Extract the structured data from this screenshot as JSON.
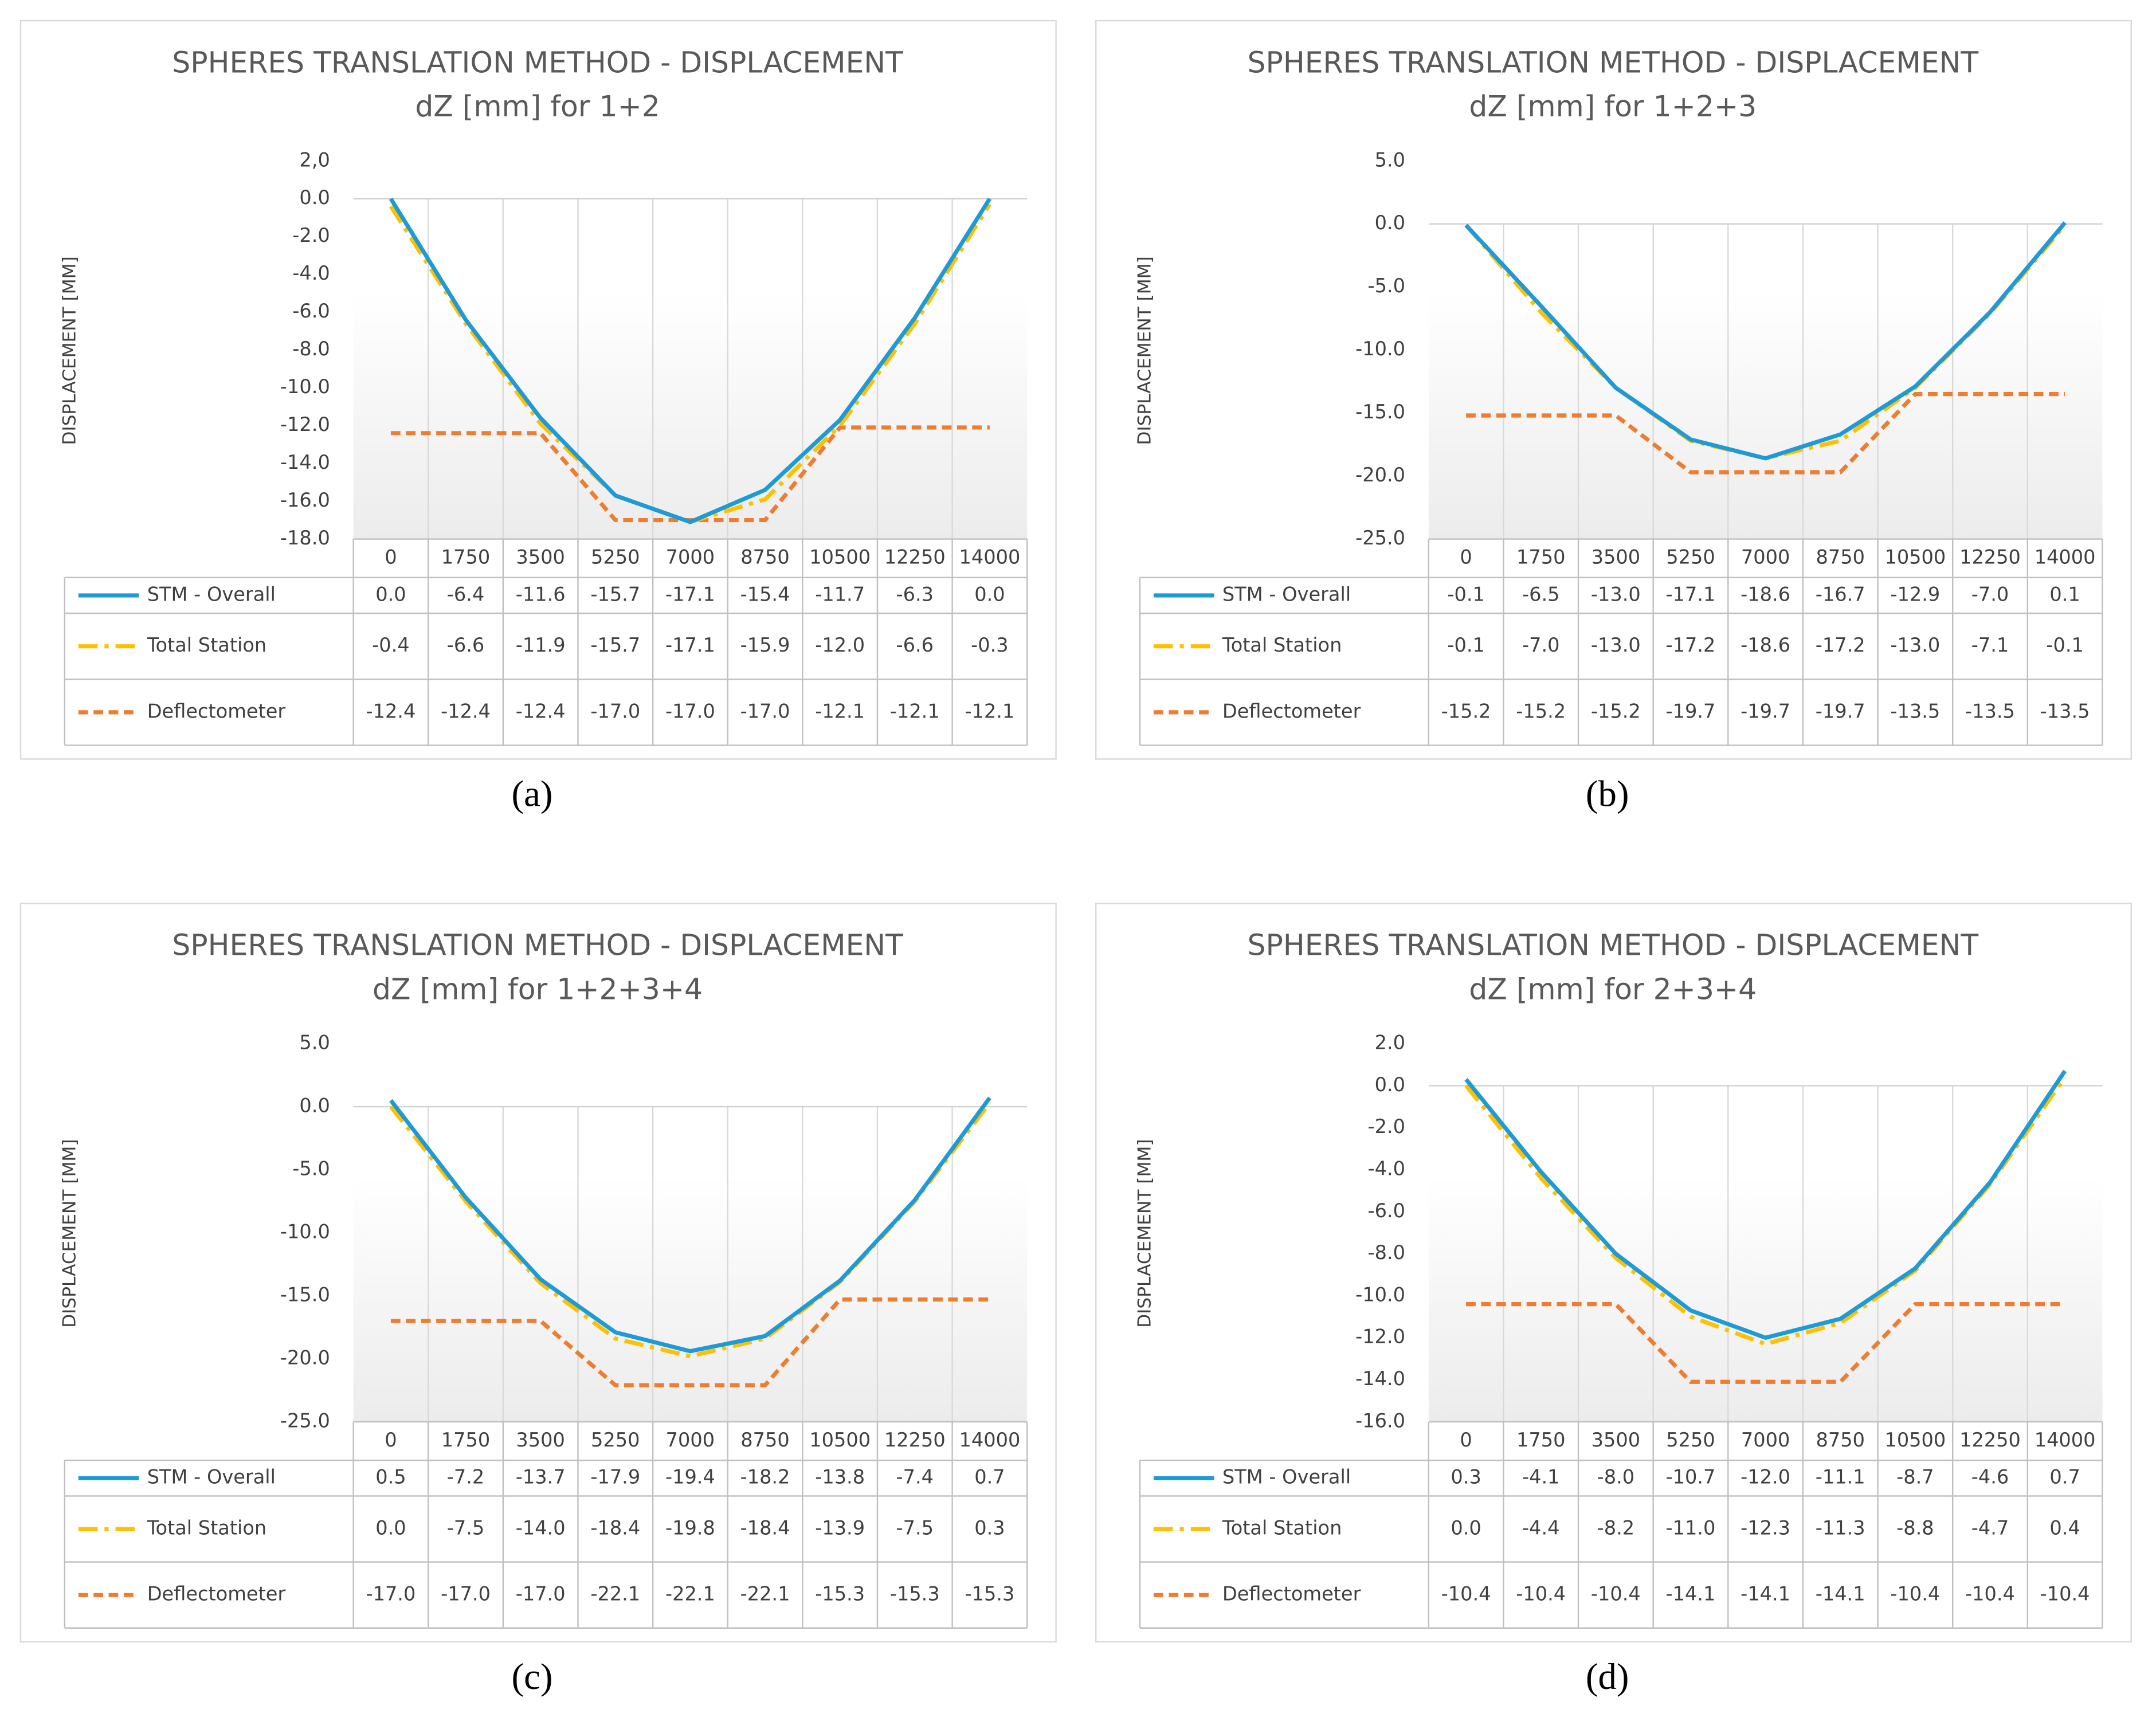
{
  "chart_data": [
    {
      "type": "line",
      "label": "(a)",
      "title": "SPHERES TRANSLATION METHOD - DISPLACEMENT",
      "subtitle": "dZ [mm] for 1+2",
      "y_label": "DISPLACEMENT [MM]",
      "categories": [
        "0",
        "1750",
        "3500",
        "5250",
        "7000",
        "8750",
        "10500",
        "12250",
        "14000"
      ],
      "ylim": [
        -18,
        2
      ],
      "yticks": [
        {
          "value": 2,
          "label": "2,0"
        },
        {
          "value": 0,
          "label": "0.0"
        },
        {
          "value": -2,
          "label": "-2.0"
        },
        {
          "value": -4,
          "label": "-4.0"
        },
        {
          "value": -6,
          "label": "-6.0"
        },
        {
          "value": -8,
          "label": "-8.0"
        },
        {
          "value": -10,
          "label": "-10.0"
        },
        {
          "value": -12,
          "label": "-12.0"
        },
        {
          "value": -14,
          "label": "-14.0"
        },
        {
          "value": -16,
          "label": "-16.0"
        },
        {
          "value": -18,
          "label": "-18.0"
        }
      ],
      "series": [
        {
          "name": "STM - Overall",
          "color": "#1e9ad6",
          "values": [
            0.0,
            -6.4,
            -11.6,
            -15.7,
            -17.1,
            -15.4,
            -11.7,
            -6.3,
            0.0
          ],
          "value_labels": [
            "0.0",
            "-6.4",
            "-11.6",
            "-15.7",
            "-17.1",
            "-15.4",
            "-11.7",
            "-6.3",
            "0.0"
          ]
        },
        {
          "name": "Total Station",
          "color": "#ffc000",
          "values": [
            -0.4,
            -6.6,
            -11.9,
            -15.7,
            -17.1,
            -15.9,
            -12.0,
            -6.6,
            -0.3
          ],
          "value_labels": [
            "-0.4",
            "-6.6",
            "-11.9",
            "-15.7",
            "-17.1",
            "-15.9",
            "-12.0",
            "-6.6",
            "-0.3"
          ]
        },
        {
          "name": "Deflectometer",
          "color": "#ed7d31",
          "values": [
            -12.4,
            -12.4,
            -12.4,
            -17.0,
            -17.0,
            -17.0,
            -12.1,
            -12.1,
            -12.1
          ],
          "value_labels": [
            "-12.4",
            "-12.4",
            "-12.4",
            "-17.0",
            "-17.0",
            "-17.0",
            "-12.1",
            "-12.1",
            "-12.1"
          ]
        }
      ]
    },
    {
      "type": "line",
      "label": "(b)",
      "title": "SPHERES TRANSLATION METHOD - DISPLACEMENT",
      "subtitle": "dZ [mm] for 1+2+3",
      "y_label": "DISPLACEMENT [MM]",
      "categories": [
        "0",
        "1750",
        "3500",
        "5250",
        "7000",
        "8750",
        "10500",
        "12250",
        "14000"
      ],
      "ylim": [
        -25,
        5
      ],
      "yticks": [
        {
          "value": 5,
          "label": "5.0"
        },
        {
          "value": 0,
          "label": "0.0"
        },
        {
          "value": -5,
          "label": "-5.0"
        },
        {
          "value": -10,
          "label": "-10.0"
        },
        {
          "value": -15,
          "label": "-15.0"
        },
        {
          "value": -20,
          "label": "-20.0"
        },
        {
          "value": -25,
          "label": "-25.0"
        }
      ],
      "series": [
        {
          "name": "STM - Overall",
          "color": "#1e9ad6",
          "values": [
            -0.1,
            -6.5,
            -13.0,
            -17.1,
            -18.6,
            -16.7,
            -12.9,
            -7.0,
            0.1
          ],
          "value_labels": [
            "-0.1",
            "-6.5",
            "-13.0",
            "-17.1",
            "-18.6",
            "-16.7",
            "-12.9",
            "-7.0",
            "0.1"
          ]
        },
        {
          "name": "Total Station",
          "color": "#ffc000",
          "values": [
            -0.1,
            -7.0,
            -13.0,
            -17.2,
            -18.6,
            -17.2,
            -13.0,
            -7.1,
            -0.1
          ],
          "value_labels": [
            "-0.1",
            "-7.0",
            "-13.0",
            "-17.2",
            "-18.6",
            "-17.2",
            "-13.0",
            "-7.1",
            "-0.1"
          ]
        },
        {
          "name": "Deflectometer",
          "color": "#ed7d31",
          "values": [
            -15.2,
            -15.2,
            -15.2,
            -19.7,
            -19.7,
            -19.7,
            -13.5,
            -13.5,
            -13.5
          ],
          "value_labels": [
            "-15.2",
            "-15.2",
            "-15.2",
            "-19.7",
            "-19.7",
            "-19.7",
            "-13.5",
            "-13.5",
            "-13.5"
          ]
        }
      ]
    },
    {
      "type": "line",
      "label": "(c)",
      "title": "SPHERES TRANSLATION METHOD - DISPLACEMENT",
      "subtitle": "dZ [mm] for 1+2+3+4",
      "y_label": "DISPLACEMENT [MM]",
      "categories": [
        "0",
        "1750",
        "3500",
        "5250",
        "7000",
        "8750",
        "10500",
        "12250",
        "14000"
      ],
      "ylim": [
        -25,
        5
      ],
      "yticks": [
        {
          "value": 5,
          "label": "5.0"
        },
        {
          "value": 0,
          "label": "0.0"
        },
        {
          "value": -5,
          "label": "-5.0"
        },
        {
          "value": -10,
          "label": "-10.0"
        },
        {
          "value": -15,
          "label": "-15.0"
        },
        {
          "value": -20,
          "label": "-20.0"
        },
        {
          "value": -25,
          "label": "-25.0"
        }
      ],
      "series": [
        {
          "name": "STM - Overall",
          "color": "#1e9ad6",
          "values": [
            0.5,
            -7.2,
            -13.7,
            -17.9,
            -19.4,
            -18.2,
            -13.8,
            -7.4,
            0.7
          ],
          "value_labels": [
            "0.5",
            "-7.2",
            "-13.7",
            "-17.9",
            "-19.4",
            "-18.2",
            "-13.8",
            "-7.4",
            "0.7"
          ]
        },
        {
          "name": "Total Station",
          "color": "#ffc000",
          "values": [
            0.0,
            -7.5,
            -14.0,
            -18.4,
            -19.8,
            -18.4,
            -13.9,
            -7.5,
            0.3
          ],
          "value_labels": [
            "0.0",
            "-7.5",
            "-14.0",
            "-18.4",
            "-19.8",
            "-18.4",
            "-13.9",
            "-7.5",
            "0.3"
          ]
        },
        {
          "name": "Deflectometer",
          "color": "#ed7d31",
          "values": [
            -17.0,
            -17.0,
            -17.0,
            -22.1,
            -22.1,
            -22.1,
            -15.3,
            -15.3,
            -15.3
          ],
          "value_labels": [
            "-17.0",
            "-17.0",
            "-17.0",
            "-22.1",
            "-22.1",
            "-22.1",
            "-15.3",
            "-15.3",
            "-15.3"
          ]
        }
      ]
    },
    {
      "type": "line",
      "label": "(d)",
      "title": "SPHERES TRANSLATION METHOD - DISPLACEMENT",
      "subtitle": "dZ [mm] for 2+3+4",
      "y_label": "DISPLACEMENT [MM]",
      "categories": [
        "0",
        "1750",
        "3500",
        "5250",
        "7000",
        "8750",
        "10500",
        "12250",
        "14000"
      ],
      "ylim": [
        -16,
        2
      ],
      "yticks": [
        {
          "value": 2,
          "label": "2.0"
        },
        {
          "value": 0,
          "label": "0.0"
        },
        {
          "value": -2,
          "label": "-2.0"
        },
        {
          "value": -4,
          "label": "-4.0"
        },
        {
          "value": -6,
          "label": "-6.0"
        },
        {
          "value": -8,
          "label": "-8.0"
        },
        {
          "value": -10,
          "label": "-10.0"
        },
        {
          "value": -12,
          "label": "-12.0"
        },
        {
          "value": -14,
          "label": "-14.0"
        },
        {
          "value": -16,
          "label": "-16.0"
        }
      ],
      "series": [
        {
          "name": "STM - Overall",
          "color": "#1e9ad6",
          "values": [
            0.3,
            -4.1,
            -8.0,
            -10.7,
            -12.0,
            -11.1,
            -8.7,
            -4.6,
            0.7
          ],
          "value_labels": [
            "0.3",
            "-4.1",
            "-8.0",
            "-10.7",
            "-12.0",
            "-11.1",
            "-8.7",
            "-4.6",
            "0.7"
          ]
        },
        {
          "name": "Total Station",
          "color": "#ffc000",
          "values": [
            0.0,
            -4.4,
            -8.2,
            -11.0,
            -12.3,
            -11.3,
            -8.8,
            -4.7,
            0.4
          ],
          "value_labels": [
            "0.0",
            "-4.4",
            "-8.2",
            "-11.0",
            "-12.3",
            "-11.3",
            "-8.8",
            "-4.7",
            "0.4"
          ]
        },
        {
          "name": "Deflectometer",
          "color": "#ed7d31",
          "values": [
            -10.4,
            -10.4,
            -10.4,
            -14.1,
            -14.1,
            -14.1,
            -10.4,
            -10.4,
            -10.4
          ],
          "value_labels": [
            "-10.4",
            "-10.4",
            "-10.4",
            "-14.1",
            "-14.1",
            "-14.1",
            "-10.4",
            "-10.4",
            "-10.4"
          ]
        }
      ]
    }
  ]
}
